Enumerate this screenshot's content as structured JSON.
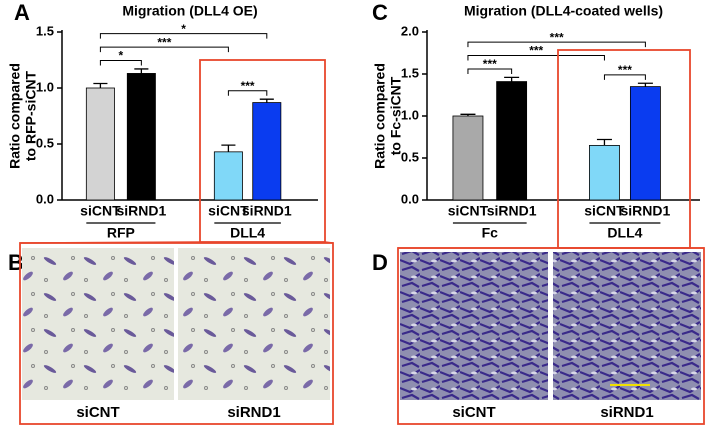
{
  "panel_labels": [
    "A",
    "B",
    "C",
    "D"
  ],
  "images": [
    {
      "captions": [
        "siCNT",
        "siRND1"
      ]
    },
    {
      "captions": [
        "siCNT",
        "siRND1"
      ]
    }
  ],
  "chart_data": [
    {
      "type": "bar",
      "title": "Migration (DLL4 OE)",
      "y_label": [
        "Ratio compared",
        "to RFP-siCNT"
      ],
      "categories": [
        "siCNT",
        "siRND1",
        "siCNT",
        "siRND1"
      ],
      "groups": [
        "RFP",
        "DLL4"
      ],
      "values": [
        1.0,
        1.13,
        0.43,
        0.87
      ],
      "errors": [
        0.04,
        0.04,
        0.06,
        0.03
      ],
      "colors": [
        "#d3d3d3",
        "#000000",
        "#80d8f8",
        "#0a3cf0"
      ],
      "ylim": [
        0,
        1.5
      ],
      "yticks": [
        {
          "value": 0,
          "label": "0.0"
        },
        {
          "value": 0.5,
          "label": "0.5"
        },
        {
          "value": 1,
          "label": "1.0"
        },
        {
          "value": 1.5,
          "label": "1.5"
        }
      ],
      "comparisons": [
        {
          "label": "***",
          "bars": [
            2,
            3
          ]
        },
        {
          "label": "*",
          "bars": [
            0,
            1
          ]
        },
        {
          "label": "***",
          "bars": [
            0,
            2
          ]
        },
        {
          "label": "*",
          "bars": [
            0,
            3
          ]
        }
      ]
    },
    {
      "type": "bar",
      "title": "Migration (DLL4-coated wells)",
      "y_label": [
        "Ratio compared",
        "to Fc-siCNT"
      ],
      "categories": [
        "siCNT",
        "siRND1",
        "siCNT",
        "siRND1"
      ],
      "groups": [
        "Fc",
        "DLL4"
      ],
      "values": [
        1.0,
        1.41,
        0.65,
        1.35
      ],
      "errors": [
        0.02,
        0.05,
        0.07,
        0.04
      ],
      "colors": [
        "#a9a9a9",
        "#000000",
        "#80d8f8",
        "#0a3cf0"
      ],
      "ylim": [
        0,
        2
      ],
      "yticks": [
        {
          "value": 0,
          "label": "0.0"
        },
        {
          "value": 0.5,
          "label": "0.5"
        },
        {
          "value": 1,
          "label": "1.0"
        },
        {
          "value": 1.5,
          "label": "1.5"
        },
        {
          "value": 2,
          "label": "2.0"
        }
      ],
      "comparisons": [
        {
          "label": "***",
          "bars": [
            0,
            1
          ]
        },
        {
          "label": "***",
          "bars": [
            2,
            3
          ]
        },
        {
          "label": "***",
          "bars": [
            0,
            2
          ]
        },
        {
          "label": "***",
          "bars": [
            0,
            3
          ]
        }
      ]
    }
  ]
}
